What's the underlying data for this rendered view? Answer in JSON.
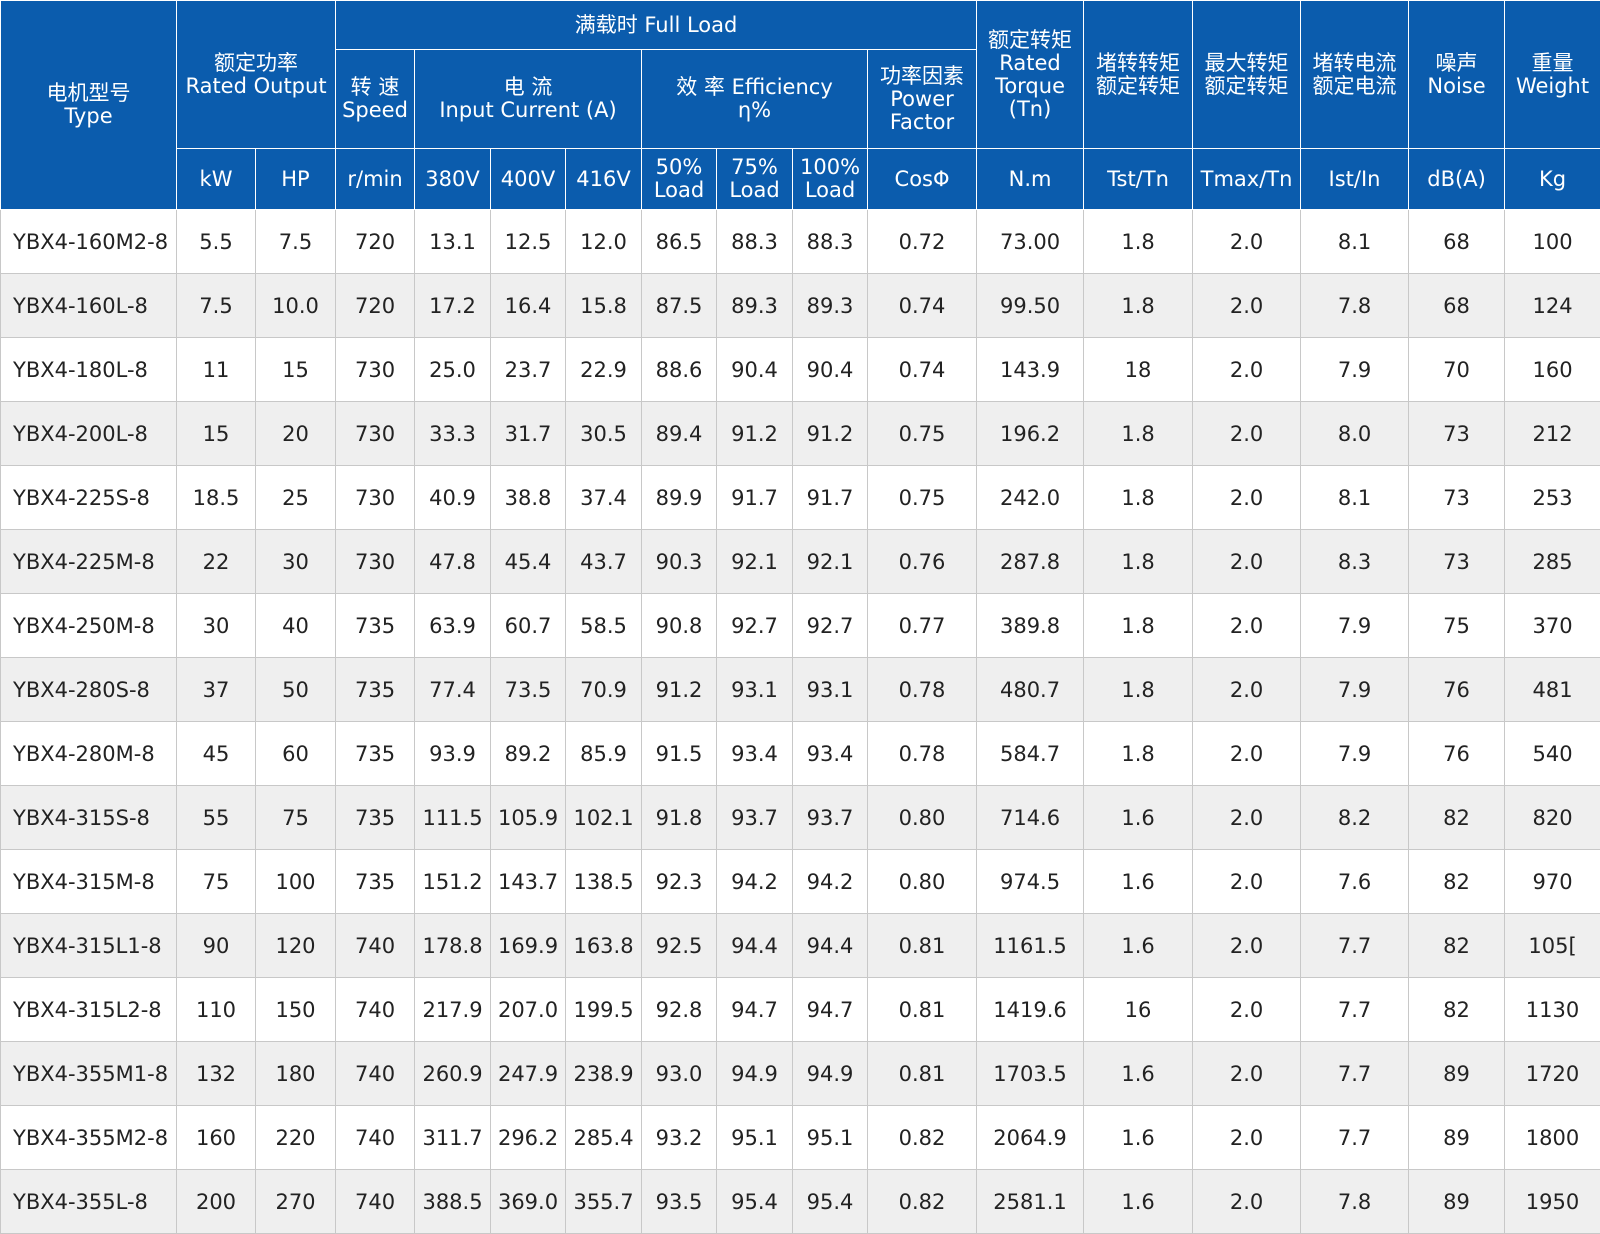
{
  "header": {
    "rows": [
      [
        [
          "电机型号",
          "Type"
        ],
        [
          "额定功率",
          "Rated Output"
        ],
        [
          "满载时  Full Load"
        ],
        [
          "额定转矩",
          "Rated",
          "Torque",
          "(Tn)"
        ],
        [
          "堵转转矩",
          "额定转矩"
        ],
        [
          "最大转矩",
          "额定转矩"
        ],
        [
          "堵转电流",
          "额定电流"
        ],
        [
          "噪声",
          "Noise"
        ],
        [
          "重量",
          "Weight"
        ]
      ],
      [
        [
          "转 速",
          "Speed"
        ],
        [
          "电 流",
          "Input Current (A)"
        ],
        [
          "效 率 Efficiency",
          "η%"
        ],
        [
          "功率因素",
          "Power",
          "Factor"
        ]
      ],
      [
        [
          "kW"
        ],
        [
          "HP"
        ],
        [
          "r/min"
        ],
        [
          "380V"
        ],
        [
          "400V"
        ],
        [
          "416V"
        ],
        [
          "50%",
          "Load"
        ],
        [
          "75%",
          "Load"
        ],
        [
          "100%",
          "Load"
        ],
        [
          "CosΦ"
        ],
        [
          "N.m"
        ],
        [
          "Tst/Tn"
        ],
        [
          "Tmax/Tn"
        ],
        [
          "Ist/In"
        ],
        [
          "dB(A)"
        ],
        [
          "Kg"
        ]
      ]
    ]
  },
  "table": {
    "rows": [
      [
        "YBX4-160M2-8",
        "5.5",
        "7.5",
        "720",
        "13.1",
        "12.5",
        "12.0",
        "86.5",
        "88.3",
        "88.3",
        "0.72",
        "73.00",
        "1.8",
        "2.0",
        "8.1",
        "68",
        "100"
      ],
      [
        "YBX4-160L-8",
        "7.5",
        "10.0",
        "720",
        "17.2",
        "16.4",
        "15.8",
        "87.5",
        "89.3",
        "89.3",
        "0.74",
        "99.50",
        "1.8",
        "2.0",
        "7.8",
        "68",
        "124"
      ],
      [
        "YBX4-180L-8",
        "11",
        "15",
        "730",
        "25.0",
        "23.7",
        "22.9",
        "88.6",
        "90.4",
        "90.4",
        "0.74",
        "143.9",
        "18",
        "2.0",
        "7.9",
        "70",
        "160"
      ],
      [
        "YBX4-200L-8",
        "15",
        "20",
        "730",
        "33.3",
        "31.7",
        "30.5",
        "89.4",
        "91.2",
        "91.2",
        "0.75",
        "196.2",
        "1.8",
        "2.0",
        "8.0",
        "73",
        "212"
      ],
      [
        "YBX4-225S-8",
        "18.5",
        "25",
        "730",
        "40.9",
        "38.8",
        "37.4",
        "89.9",
        "91.7",
        "91.7",
        "0.75",
        "242.0",
        "1.8",
        "2.0",
        "8.1",
        "73",
        "253"
      ],
      [
        "YBX4-225M-8",
        "22",
        "30",
        "730",
        "47.8",
        "45.4",
        "43.7",
        "90.3",
        "92.1",
        "92.1",
        "0.76",
        "287.8",
        "1.8",
        "2.0",
        "8.3",
        "73",
        "285"
      ],
      [
        "YBX4-250M-8",
        "30",
        "40",
        "735",
        "63.9",
        "60.7",
        "58.5",
        "90.8",
        "92.7",
        "92.7",
        "0.77",
        "389.8",
        "1.8",
        "2.0",
        "7.9",
        "75",
        "370"
      ],
      [
        "YBX4-280S-8",
        "37",
        "50",
        "735",
        "77.4",
        "73.5",
        "70.9",
        "91.2",
        "93.1",
        "93.1",
        "0.78",
        "480.7",
        "1.8",
        "2.0",
        "7.9",
        "76",
        "481"
      ],
      [
        "YBX4-280M-8",
        "45",
        "60",
        "735",
        "93.9",
        "89.2",
        "85.9",
        "91.5",
        "93.4",
        "93.4",
        "0.78",
        "584.7",
        "1.8",
        "2.0",
        "7.9",
        "76",
        "540"
      ],
      [
        "YBX4-315S-8",
        "55",
        "75",
        "735",
        "111.5",
        "105.9",
        "102.1",
        "91.8",
        "93.7",
        "93.7",
        "0.80",
        "714.6",
        "1.6",
        "2.0",
        "8.2",
        "82",
        "820"
      ],
      [
        "YBX4-315M-8",
        "75",
        "100",
        "735",
        "151.2",
        "143.7",
        "138.5",
        "92.3",
        "94.2",
        "94.2",
        "0.80",
        "974.5",
        "1.6",
        "2.0",
        "7.6",
        "82",
        "970"
      ],
      [
        "YBX4-315L1-8",
        "90",
        "120",
        "740",
        "178.8",
        "169.9",
        "163.8",
        "92.5",
        "94.4",
        "94.4",
        "0.81",
        "1161.5",
        "1.6",
        "2.0",
        "7.7",
        "82",
        "105["
      ],
      [
        "YBX4-315L2-8",
        "110",
        "150",
        "740",
        "217.9",
        "207.0",
        "199.5",
        "92.8",
        "94.7",
        "94.7",
        "0.81",
        "1419.6",
        "16",
        "2.0",
        "7.7",
        "82",
        "1130"
      ],
      [
        "YBX4-355M1-8",
        "132",
        "180",
        "740",
        "260.9",
        "247.9",
        "238.9",
        "93.0",
        "94.9",
        "94.9",
        "0.81",
        "1703.5",
        "1.6",
        "2.0",
        "7.7",
        "89",
        "1720"
      ],
      [
        "YBX4-355M2-8",
        "160",
        "220",
        "740",
        "311.7",
        "296.2",
        "285.4",
        "93.2",
        "95.1",
        "95.1",
        "0.82",
        "2064.9",
        "1.6",
        "2.0",
        "7.7",
        "89",
        "1800"
      ],
      [
        "YBX4-355L-8",
        "200",
        "270",
        "740",
        "388.5",
        "369.0",
        "355.7",
        "93.5",
        "95.4",
        "95.4",
        "0.82",
        "2581.1",
        "1.6",
        "2.0",
        "7.8",
        "89",
        "1950"
      ]
    ]
  }
}
